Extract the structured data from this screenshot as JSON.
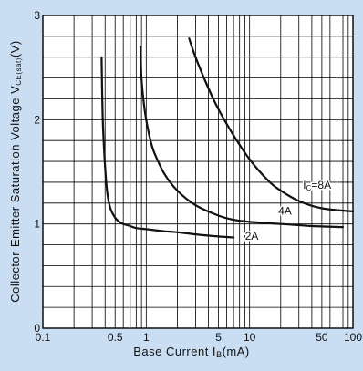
{
  "chart_data": {
    "type": "line",
    "xscale": "log",
    "xlim": [
      0.1,
      100
    ],
    "ylim": [
      0,
      3
    ],
    "grid": true,
    "x_tick_labels": [
      "0.1",
      "0.5",
      "1",
      "5",
      "10",
      "50",
      "100"
    ],
    "x_tick_values": [
      0.1,
      0.5,
      1,
      5,
      10,
      50,
      100
    ],
    "y_tick_labels": [
      "0",
      "1",
      "2",
      "3"
    ],
    "y_tick_values": [
      0,
      1,
      2,
      3
    ],
    "xlabel_text": "Base Current I",
    "xlabel_sub": "B",
    "xlabel_unit": "(mA)",
    "ylabel_text": "Collector-Emitter Saturation Voltage V",
    "ylabel_sub": "CE(sat)",
    "ylabel_unit": "(V)",
    "series": [
      {
        "name": "2A",
        "label_text": "2A",
        "x": [
          0.37,
          0.38,
          0.4,
          0.42,
          0.45,
          0.5,
          0.55,
          0.6,
          0.7,
          0.8,
          1.0,
          1.5,
          2,
          3,
          5,
          7
        ],
        "y": [
          2.6,
          2.0,
          1.55,
          1.3,
          1.15,
          1.06,
          1.02,
          1.0,
          0.98,
          0.96,
          0.95,
          0.93,
          0.92,
          0.9,
          0.88,
          0.87
        ]
      },
      {
        "name": "4A",
        "label_text": "4A",
        "x": [
          0.88,
          0.9,
          0.95,
          1.0,
          1.1,
          1.2,
          1.5,
          2,
          3,
          5,
          7,
          10,
          20,
          40,
          80
        ],
        "y": [
          2.7,
          2.4,
          2.15,
          2.0,
          1.8,
          1.68,
          1.48,
          1.32,
          1.18,
          1.08,
          1.04,
          1.02,
          1.0,
          0.98,
          0.97
        ]
      },
      {
        "name": "Ic=8A",
        "label_prefix": "I",
        "label_sub": "C",
        "label_suffix": "=8A",
        "x": [
          2.6,
          3,
          4,
          5,
          7,
          10,
          15,
          20,
          30,
          50,
          100
        ],
        "y": [
          2.78,
          2.6,
          2.3,
          2.1,
          1.85,
          1.62,
          1.42,
          1.32,
          1.22,
          1.15,
          1.12
        ]
      }
    ]
  }
}
